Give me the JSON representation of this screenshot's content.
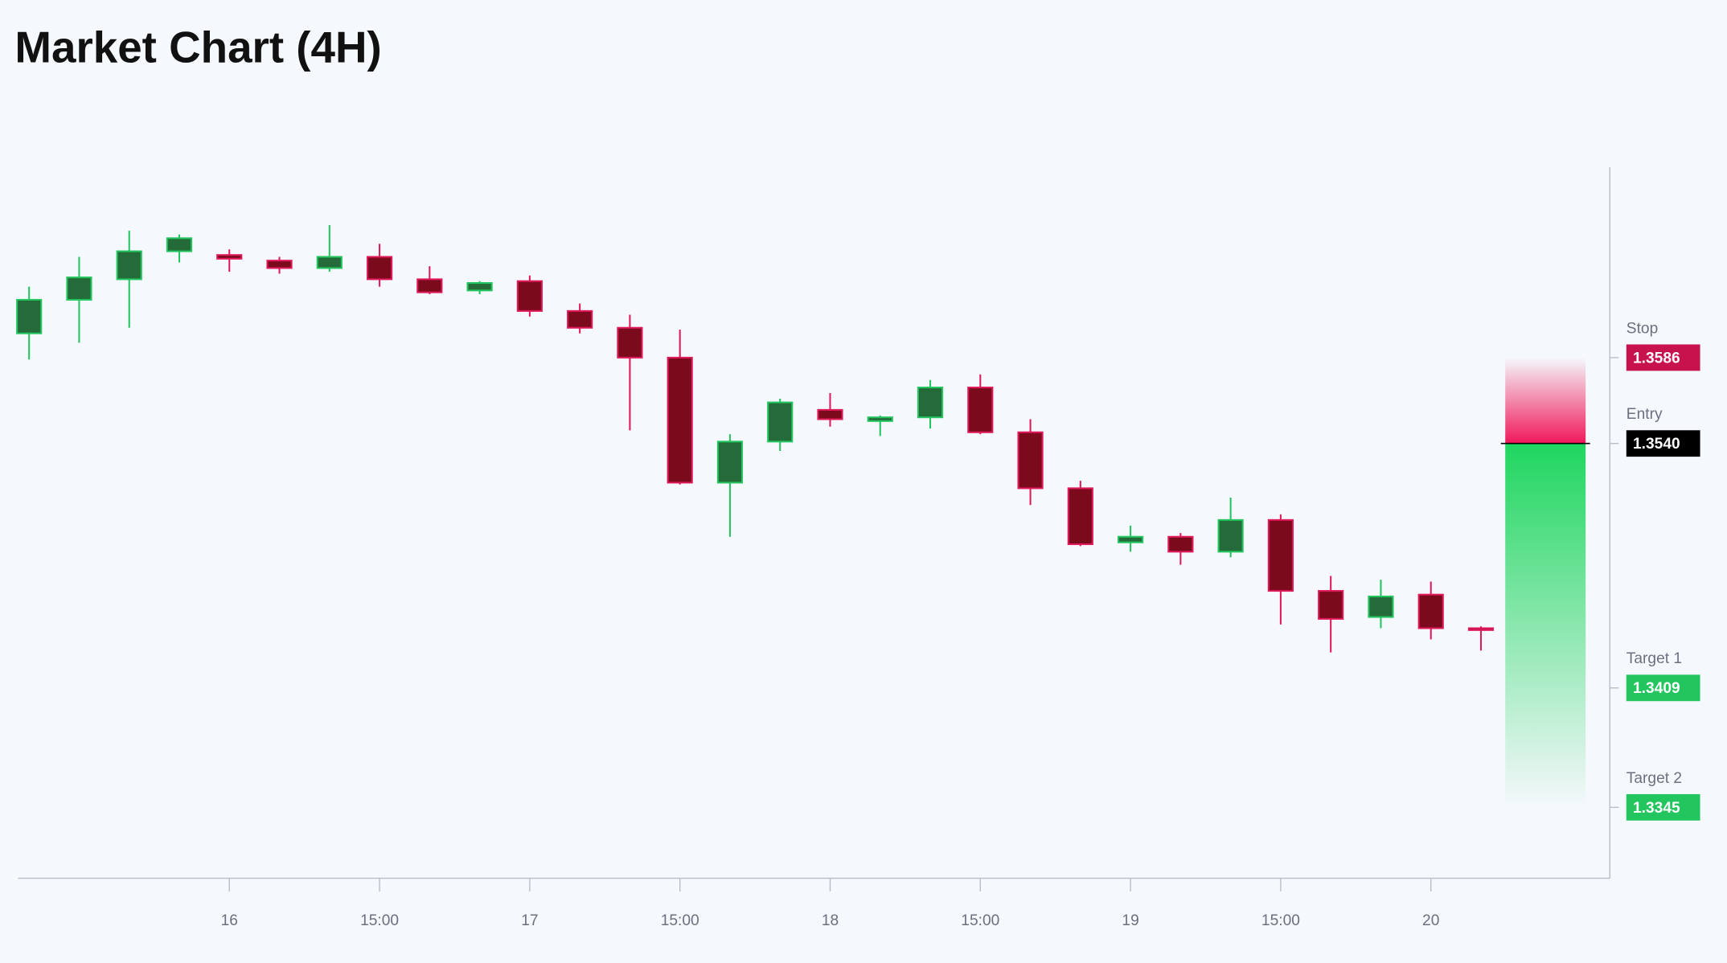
{
  "chart_data": {
    "type": "candlestick",
    "title": "Market Chart (4H)",
    "categories": [
      null,
      null,
      null,
      null,
      "16",
      null,
      null,
      "15:00",
      null,
      null,
      "17",
      null,
      null,
      "15:00",
      null,
      null,
      "18",
      null,
      null,
      "15:00",
      null,
      null,
      "19",
      null,
      null,
      "15:00",
      null,
      null,
      "20",
      null
    ],
    "open": [
      1.3599,
      1.3617,
      1.3628,
      1.3643,
      1.3641,
      1.3638,
      1.3634,
      1.364,
      1.3628,
      1.3622,
      1.3627,
      1.3611,
      1.3602,
      1.3586,
      1.3519,
      1.3541,
      1.3558,
      1.3552,
      1.3554,
      1.357,
      1.3546,
      1.3516,
      1.3487,
      1.349,
      1.3482,
      1.3499,
      1.3461,
      1.3447,
      1.3459,
      1.3441
    ],
    "high": [
      1.3624,
      1.364,
      1.3654,
      1.3652,
      1.3644,
      1.364,
      1.3657,
      1.3647,
      1.3635,
      1.3627,
      1.363,
      1.3615,
      1.3609,
      1.3601,
      1.3545,
      1.3564,
      1.3567,
      1.3555,
      1.3574,
      1.3577,
      1.3553,
      1.352,
      1.3496,
      1.3492,
      1.3511,
      1.3502,
      1.3469,
      1.3467,
      1.3466,
      1.3442
    ],
    "low": [
      1.3585,
      1.3594,
      1.3602,
      1.3637,
      1.3632,
      1.3631,
      1.3632,
      1.3624,
      1.362,
      1.362,
      1.3608,
      1.3599,
      1.3547,
      1.3518,
      1.349,
      1.3536,
      1.3549,
      1.3544,
      1.3548,
      1.3545,
      1.3507,
      1.3485,
      1.3482,
      1.3475,
      1.3479,
      1.3443,
      1.3428,
      1.3441,
      1.3435,
      1.3429
    ],
    "close": [
      1.3617,
      1.3629,
      1.3643,
      1.365,
      1.3639,
      1.3634,
      1.364,
      1.3628,
      1.3621,
      1.3626,
      1.3611,
      1.3602,
      1.3586,
      1.3519,
      1.3541,
      1.3562,
      1.3553,
      1.3554,
      1.357,
      1.3546,
      1.3516,
      1.3486,
      1.349,
      1.3482,
      1.3499,
      1.3461,
      1.3446,
      1.3458,
      1.3441,
      1.344
    ],
    "up_color": "#22c55e",
    "down_color": "#e0195a",
    "ylim": [
      1.3307,
      1.3688
    ],
    "yticks": [
      1.3586,
      {
        "value": 1.354,
        "label": "1.3540"
      },
      1.3409,
      1.3345
    ],
    "levels": [
      {
        "name": "Stop",
        "color": "#c8124e"
      },
      {
        "name": "Entry",
        "color": "#000000"
      },
      {
        "name": "Target 1",
        "color": "#22c55e"
      },
      {
        "name": "Target 2",
        "color": "#22c55e"
      }
    ]
  }
}
